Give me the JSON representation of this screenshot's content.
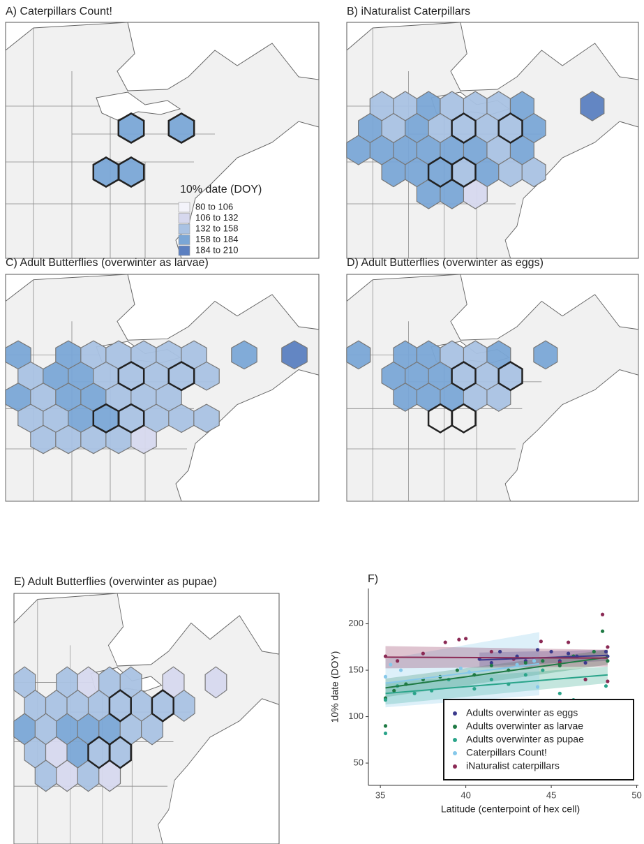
{
  "chart_data": [
    {
      "type": "map",
      "title": "A) Caterpillars Count!",
      "legend": {
        "title": "10% date (DOY)",
        "labels": [
          "80 to 106",
          "106 to 132",
          "132 to 158",
          "158 to 184",
          "184 to 210"
        ],
        "colors": [
          "#f3f3fa",
          "#d6d8ee",
          "#a9c2e3",
          "#7aa6d6",
          "#5b7fc0"
        ]
      }
    },
    {
      "type": "map",
      "title": "B) iNaturalist Caterpillars"
    },
    {
      "type": "map",
      "title": "C) Adult Butterflies (overwinter as larvae)"
    },
    {
      "type": "map",
      "title": "D) Adult Butterflies (overwinter as eggs)"
    },
    {
      "type": "map",
      "title": "E) Adult Butterflies (overwinter as pupae)"
    },
    {
      "type": "scatter",
      "title": "F)",
      "x_label": "Latitude (centerpoint of hex cell)",
      "y_label": "10% date (DOY)",
      "xlim": [
        34.3,
        50.1
      ],
      "ylim": [
        26,
        238
      ],
      "xticks": [
        35,
        40,
        45,
        50
      ],
      "yticks": [
        50,
        100,
        150,
        200
      ],
      "legend": "lower right",
      "series": [
        {
          "name": "Adults overwinter as eggs",
          "color": "#3b3a8c",
          "x": [
            40.8,
            41.5,
            42,
            43,
            43.5,
            44.2,
            45,
            45.5,
            46,
            46.5,
            47,
            48.2,
            48.3
          ],
          "y": [
            162,
            158,
            170,
            165,
            160,
            172,
            170,
            160,
            168,
            165,
            158,
            170,
            165
          ],
          "fit": {
            "x": [
              40.8,
              48.3
            ],
            "y": [
              161,
              166
            ],
            "lower": [
              154,
              160
            ],
            "upper": [
              169,
              172
            ]
          }
        },
        {
          "name": "Adults overwinter as larvae",
          "color": "#1f7a44",
          "x": [
            35.3,
            35.3,
            35.8,
            36.5,
            37.5,
            38.5,
            39.5,
            40.5,
            41.5,
            42.5,
            43.5,
            44.5,
            45.5,
            46.3,
            47.5,
            48,
            48.3
          ],
          "y": [
            90,
            120,
            128,
            135,
            140,
            143,
            150,
            145,
            155,
            150,
            158,
            160,
            155,
            165,
            170,
            192,
            160
          ],
          "fit": {
            "x": [
              35.3,
              48.3
            ],
            "y": [
              131,
              164
            ],
            "lower": [
              121,
              156
            ],
            "upper": [
              141,
              172
            ]
          }
        },
        {
          "name": "Adults overwinter as pupae",
          "color": "#2aa48a",
          "x": [
            35.3,
            35.3,
            36,
            37,
            38,
            39,
            40.5,
            41.5,
            42.5,
            43.5,
            44.5,
            45.5,
            46.3,
            47,
            48.2
          ],
          "y": [
            82,
            118,
            133,
            125,
            128,
            140,
            130,
            140,
            135,
            145,
            150,
            125,
            118,
            140,
            133
          ],
          "fit": {
            "x": [
              35.3,
              48.3
            ],
            "y": [
              125,
              145
            ],
            "lower": [
              113,
              136
            ],
            "upper": [
              137,
              154
            ]
          }
        },
        {
          "name": "Caterpillars Count!",
          "color": "#86c8ea",
          "x": [
            35.3,
            35.6,
            36.2,
            39.7,
            40.2,
            43,
            44,
            44.2
          ],
          "y": [
            143,
            156,
            150,
            152,
            148,
            156,
            160,
            132
          ],
          "fit": {
            "x": [
              35.3,
              44.3
            ],
            "y": [
              136,
              157
            ],
            "lower": [
              110,
              123
            ],
            "upper": [
              162,
              191
            ]
          }
        },
        {
          "name": "iNaturalist caterpillars",
          "color": "#8b2a55",
          "x": [
            35.3,
            36,
            37.5,
            38.8,
            39.6,
            40,
            41.5,
            42.8,
            44.4,
            45.5,
            46,
            47,
            48,
            48.3,
            48.3
          ],
          "y": [
            165,
            160,
            168,
            180,
            183,
            184,
            170,
            162,
            181,
            158,
            180,
            140,
            210,
            138,
            175
          ],
          "fit": {
            "x": [
              35.3,
              48.3
            ],
            "y": [
              164,
              163
            ],
            "lower": [
              152,
              154
            ],
            "upper": [
              176,
              172
            ]
          }
        }
      ]
    }
  ]
}
